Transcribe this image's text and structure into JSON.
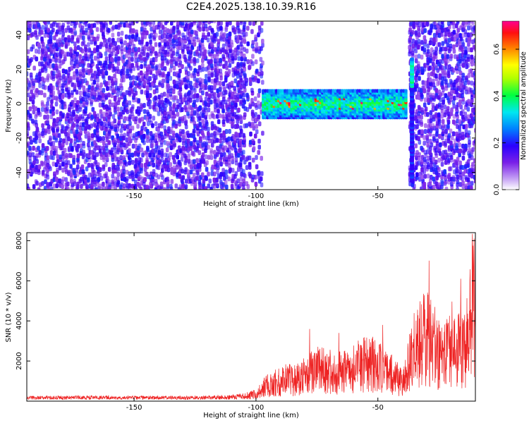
{
  "chart_data": [
    {
      "type": "heatmap",
      "title": "C2E4.2025.138.10.39.R16",
      "xlabel": "Height of straight line (km)",
      "ylabel": "Frequency (Hz)",
      "xlim": [
        -194,
        -10
      ],
      "ylim": [
        -50,
        48
      ],
      "xticks": [
        -150,
        -100,
        -50
      ],
      "yticks": [
        -40,
        -20,
        0,
        20,
        40
      ],
      "colorbar": {
        "label": "Normalized spectral amplitude",
        "range": [
          0,
          0.72
        ],
        "ticks": [
          0.0,
          0.2,
          0.4,
          0.6
        ],
        "colormap": [
          "#ffffff",
          "#8a2be2",
          "#3000ff",
          "#0070ff",
          "#00e0ff",
          "#00ff40",
          "#ffff00",
          "#ff8000",
          "#ff0000",
          "#ff0080"
        ]
      },
      "features": {
        "noise_regions_km": [
          [
            -194,
            -97
          ],
          [
            -37,
            -10
          ]
        ],
        "quiet_region_km": [
          -97,
          -37
        ],
        "signal_band": {
          "x_range_km": [
            -97,
            -38
          ],
          "freq_center_hz": 0,
          "freq_halfwidth_hz": 8,
          "peak_amplitude": 0.7
        },
        "spike": {
          "x_km": -36,
          "freq_range_hz": [
            -45,
            26
          ]
        }
      }
    },
    {
      "type": "line",
      "xlabel": "Height of straight line (km)",
      "ylabel": "SNR (10 * v/v)",
      "xlim": [
        -194,
        -10
      ],
      "ylim": [
        0,
        8400
      ],
      "xticks": [
        -150,
        -100,
        -50
      ],
      "yticks": [
        2000,
        4000,
        6000,
        8000
      ],
      "color": "#ee2222",
      "series": [
        {
          "x": [
            -194,
            -170,
            -150,
            -130,
            -110,
            -100,
            -95,
            -90,
            -85,
            -80,
            -75,
            -70,
            -65,
            -60,
            -55,
            -50,
            -45,
            -40,
            -35,
            -30,
            -25,
            -20,
            -15,
            -10
          ],
          "y": [
            200,
            220,
            210,
            200,
            250,
            500,
            1200,
            1500,
            1600,
            1800,
            2300,
            2200,
            2100,
            2400,
            2900,
            2600,
            2000,
            1500,
            3800,
            4800,
            3500,
            4300,
            3500,
            8100
          ],
          "peaks": [
            {
              "x": -78,
              "y": 3600
            },
            {
              "x": -66,
              "y": 3400
            },
            {
              "x": -48,
              "y": 3800
            },
            {
              "x": -29,
              "y": 7000
            },
            {
              "x": -16,
              "y": 6100
            },
            {
              "x": -10.5,
              "y": 8100
            }
          ]
        }
      ]
    }
  ]
}
